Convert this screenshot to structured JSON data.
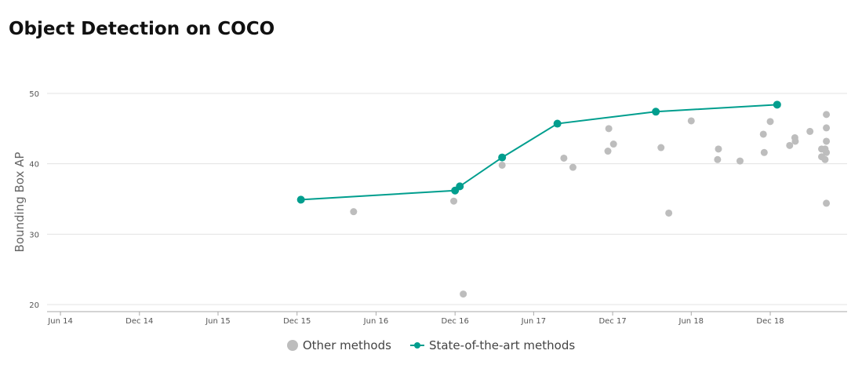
{
  "chart_data": {
    "type": "scatter",
    "title": "Object Detection on COCO",
    "ylabel": "Bounding Box AP",
    "xlabel": "",
    "ylim": [
      19,
      51
    ],
    "xlim": [
      "2014-05-01",
      "2019-05-28"
    ],
    "yticks": [
      20,
      30,
      40,
      50
    ],
    "xticks": [
      {
        "date": "2014-06-01",
        "label": "Jun 14"
      },
      {
        "date": "2014-12-01",
        "label": "Dec 14"
      },
      {
        "date": "2015-06-01",
        "label": "Jun 15"
      },
      {
        "date": "2015-12-01",
        "label": "Dec 15"
      },
      {
        "date": "2016-06-01",
        "label": "Jun 16"
      },
      {
        "date": "2016-12-01",
        "label": "Dec 16"
      },
      {
        "date": "2017-06-01",
        "label": "Jun 17"
      },
      {
        "date": "2017-12-01",
        "label": "Dec 17"
      },
      {
        "date": "2018-06-01",
        "label": "Jun 18"
      },
      {
        "date": "2018-12-01",
        "label": "Dec 18"
      }
    ],
    "grid": true,
    "legend_position": "bottom",
    "series": [
      {
        "name": "Other methods",
        "type": "scatter",
        "color": "#bdbdbd",
        "points": [
          {
            "x": "2016-04-10",
            "y": 33.2
          },
          {
            "x": "2016-11-28",
            "y": 34.7
          },
          {
            "x": "2016-12-20",
            "y": 21.5
          },
          {
            "x": "2017-03-20",
            "y": 39.8
          },
          {
            "x": "2017-08-10",
            "y": 40.8
          },
          {
            "x": "2017-08-31",
            "y": 39.5
          },
          {
            "x": "2017-11-20",
            "y": 41.8
          },
          {
            "x": "2017-11-22",
            "y": 45.0
          },
          {
            "x": "2017-12-03",
            "y": 42.8
          },
          {
            "x": "2018-03-23",
            "y": 42.3
          },
          {
            "x": "2018-04-10",
            "y": 33.0
          },
          {
            "x": "2018-06-01",
            "y": 46.1
          },
          {
            "x": "2018-08-01",
            "y": 40.6
          },
          {
            "x": "2018-08-03",
            "y": 42.1
          },
          {
            "x": "2018-09-22",
            "y": 40.4
          },
          {
            "x": "2018-11-15",
            "y": 44.2
          },
          {
            "x": "2018-11-17",
            "y": 41.6
          },
          {
            "x": "2018-12-01",
            "y": 46.0
          },
          {
            "x": "2019-01-15",
            "y": 42.6
          },
          {
            "x": "2019-01-27",
            "y": 43.7
          },
          {
            "x": "2019-01-28",
            "y": 43.2
          },
          {
            "x": "2019-03-03",
            "y": 44.6
          },
          {
            "x": "2019-03-30",
            "y": 42.1
          },
          {
            "x": "2019-03-30",
            "y": 41.0
          },
          {
            "x": "2019-04-07",
            "y": 40.6
          },
          {
            "x": "2019-04-07",
            "y": 42.1
          },
          {
            "x": "2019-04-10",
            "y": 47.0
          },
          {
            "x": "2019-04-10",
            "y": 45.1
          },
          {
            "x": "2019-04-10",
            "y": 43.2
          },
          {
            "x": "2019-04-10",
            "y": 41.6
          },
          {
            "x": "2019-04-10",
            "y": 34.4
          }
        ]
      },
      {
        "name": "State-of-the-art methods",
        "type": "line",
        "color": "#009e8e",
        "points": [
          {
            "x": "2015-12-10",
            "y": 34.9
          },
          {
            "x": "2016-12-01",
            "y": 36.2
          },
          {
            "x": "2016-12-12",
            "y": 36.8
          },
          {
            "x": "2017-03-20",
            "y": 40.9
          },
          {
            "x": "2017-07-26",
            "y": 45.7
          },
          {
            "x": "2018-03-11",
            "y": 47.4
          },
          {
            "x": "2018-12-17",
            "y": 48.4
          }
        ]
      }
    ]
  },
  "legend": {
    "other_label": "Other methods",
    "sota_label": "State-of-the-art methods"
  }
}
